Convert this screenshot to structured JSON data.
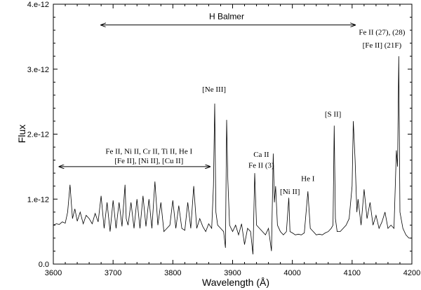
{
  "chart_data": {
    "type": "line",
    "title": "",
    "xlabel": "Wavelength  (Å)",
    "ylabel": "Flux",
    "xlim": [
      3600,
      4200
    ],
    "ylim": [
      0.0,
      4e-12
    ],
    "grid": false,
    "x_ticks": [
      3600,
      3700,
      3800,
      3900,
      4000,
      4100,
      4200
    ],
    "x_tick_labels": [
      "3600",
      "3700",
      "3800",
      "3900",
      "4000",
      "4100",
      "4200"
    ],
    "y_ticks": [
      0.0,
      1e-12,
      2e-12,
      3e-12,
      4e-12
    ],
    "y_tick_labels": [
      "0.0",
      "1.e-12",
      "2.e-12",
      "3.e-12",
      "4.e-12"
    ],
    "series": [
      {
        "x": [
          3600,
          3605,
          3610,
          3615,
          3620,
          3624,
          3628,
          3632,
          3636,
          3640,
          3645,
          3650,
          3655,
          3660,
          3665,
          3670,
          3675,
          3680,
          3685,
          3690,
          3695,
          3700,
          3705,
          3710,
          3715,
          3720,
          3722,
          3725,
          3730,
          3735,
          3740,
          3745,
          3750,
          3755,
          3760,
          3765,
          3770,
          3775,
          3780,
          3785,
          3790,
          3795,
          3800,
          3805,
          3810,
          3815,
          3820,
          3825,
          3830,
          3835,
          3840,
          3845,
          3850,
          3855,
          3860,
          3865,
          3868,
          3870,
          3872,
          3875,
          3880,
          3885,
          3888,
          3890,
          3892,
          3895,
          3900,
          3905,
          3910,
          3915,
          3920,
          3925,
          3930,
          3934,
          3937,
          3940,
          3945,
          3950,
          3955,
          3960,
          3965,
          3968,
          3970,
          3972,
          3975,
          3980,
          3985,
          3990,
          3994,
          3996,
          4000,
          4005,
          4010,
          4015,
          4020,
          4026,
          4030,
          4035,
          4040,
          4045,
          4050,
          4055,
          4060,
          4065,
          4068,
          4070,
          4072,
          4075,
          4080,
          4085,
          4090,
          4095,
          4100,
          4102,
          4105,
          4108,
          4110,
          4115,
          4120,
          4125,
          4130,
          4135,
          4140,
          4145,
          4150,
          4155,
          4160,
          4165,
          4170,
          4174,
          4176,
          4178,
          4180,
          4185,
          4190,
          4195,
          4200
        ],
        "y": [
          6e-13,
          6.2e-13,
          6.1e-13,
          6.5e-13,
          6.3e-13,
          8e-13,
          1.22e-12,
          7e-13,
          8.5e-13,
          6.6e-13,
          8e-13,
          6.2e-13,
          7.5e-13,
          7e-13,
          6.2e-13,
          7.8e-13,
          6.5e-13,
          1.05e-12,
          5.5e-13,
          9.5e-13,
          5e-13,
          9.8e-13,
          5.5e-13,
          9.5e-13,
          5.8e-13,
          1.22e-12,
          7e-13,
          6e-13,
          9.5e-13,
          5.5e-13,
          1e-12,
          5.5e-13,
          1.05e-12,
          5.8e-13,
          1e-12,
          5.5e-13,
          1.27e-12,
          6e-13,
          9.5e-13,
          5e-13,
          5.5e-13,
          6e-13,
          9.8e-13,
          5.5e-13,
          9e-13,
          5.5e-13,
          5.2e-13,
          9.5e-13,
          5.5e-13,
          1.2e-12,
          5.5e-13,
          7e-13,
          5.8e-13,
          5e-13,
          6.2e-13,
          5.5e-13,
          1.2e-12,
          2.47e-12,
          8e-13,
          6e-13,
          5.5e-13,
          5e-13,
          2.5e-13,
          2.22e-12,
          1.3e-12,
          6e-13,
          5e-13,
          6e-13,
          4.5e-13,
          6.2e-13,
          3e-13,
          5.5e-13,
          5e-13,
          1.5e-13,
          1.4e-12,
          6e-13,
          5.5e-13,
          5e-13,
          4.5e-13,
          5.5e-13,
          2e-13,
          1.7e-12,
          9.5e-13,
          1.2e-12,
          6e-13,
          5e-13,
          4.5e-13,
          5e-13,
          1.02e-12,
          5e-13,
          4.8e-13,
          4.5e-13,
          4.6e-13,
          4.5e-13,
          4.8e-13,
          1.12e-12,
          5.5e-13,
          5e-13,
          4.5e-13,
          4.6e-13,
          4.5e-13,
          4.8e-13,
          5e-13,
          5.5e-13,
          6e-13,
          2.13e-12,
          7e-13,
          5e-13,
          5e-13,
          5.5e-13,
          6e-13,
          7e-13,
          1.2e-12,
          2.2e-12,
          1.6e-12,
          8e-13,
          1e-12,
          6e-13,
          1.15e-12,
          7e-13,
          9.5e-13,
          6e-13,
          7.5e-13,
          5.5e-13,
          6.5e-13,
          8e-13,
          5.5e-13,
          6e-13,
          5.5e-13,
          1.75e-12,
          1.5e-12,
          3.2e-12,
          8e-13,
          5.5e-13,
          4.5e-13,
          4e-13,
          4e-13
        ]
      }
    ],
    "annotations": [
      {
        "text": "H Balmer",
        "x": 3890,
        "y": 3.77e-12,
        "style": "sans"
      },
      {
        "text": "Fe II (27), (28)",
        "x": 4150,
        "y": 3.53e-12,
        "style": "serif"
      },
      {
        "text": "[Fe II] (21F)",
        "x": 4150,
        "y": 3.33e-12,
        "style": "serif"
      },
      {
        "text": "[Ne III]",
        "x": 3869,
        "y": 2.65e-12,
        "style": "serif"
      },
      {
        "text": "[S II]",
        "x": 4068,
        "y": 2.27e-12,
        "style": "serif"
      },
      {
        "text": "Fe II, Ni II, Cr II, Ti II, He I",
        "x": 3760,
        "y": 1.7e-12,
        "style": "serif"
      },
      {
        "text": "[Fe II], [Ni II], [Cu II]",
        "x": 3760,
        "y": 1.55e-12,
        "style": "serif"
      },
      {
        "text": "Ca II",
        "x": 3948,
        "y": 1.65e-12,
        "style": "serif"
      },
      {
        "text": "Fe II (3)",
        "x": 3948,
        "y": 1.48e-12,
        "style": "serif"
      },
      {
        "text": "He I",
        "x": 4026,
        "y": 1.28e-12,
        "style": "serif"
      },
      {
        "text": "[Ni II]",
        "x": 3996,
        "y": 1.08e-12,
        "style": "serif"
      }
    ],
    "arrows": [
      {
        "from": 3680,
        "to": 4105,
        "y": 3.68e-12
      },
      {
        "from": 3610,
        "to": 3862,
        "y": 1.5e-12
      }
    ]
  }
}
